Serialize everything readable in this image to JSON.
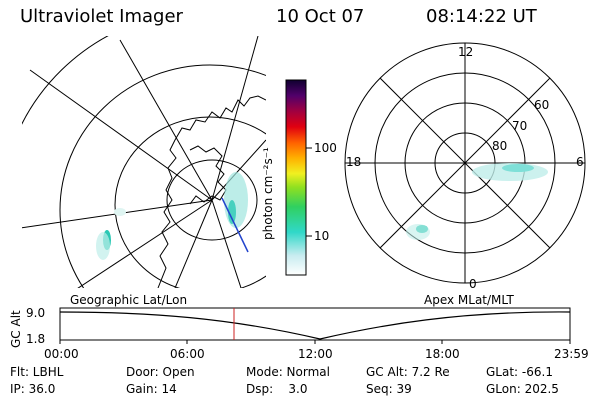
{
  "header": {
    "instrument": "Ultraviolet Imager",
    "date": "10 Oct 07",
    "time": "08:14:22 UT"
  },
  "colorbar": {
    "unit_label": "photon cm⁻²s⁻¹",
    "ticks": [
      "100",
      "10"
    ]
  },
  "polar": {
    "clock_labels": {
      "top": "12",
      "left": "18",
      "right": "6",
      "bottom": "0"
    },
    "lat_labels": [
      "80",
      "70",
      "60"
    ]
  },
  "timeline": {
    "left_title": "Geographic Lat/Lon",
    "right_title": "Apex MLat/MLT",
    "y_axis_label": "GC Alt",
    "y_ticks": [
      "9.0",
      "1.8"
    ],
    "x_ticks": [
      "00:00",
      "06:00",
      "12:00",
      "18:00",
      "23:59"
    ]
  },
  "status": {
    "flt": "Flt: LBHL",
    "ip": "IP: 36.0",
    "door": "Door: Open",
    "gain": "Gain: 14",
    "mode": "Mode: Normal",
    "dsp": "Dsp:    3.0",
    "gc_alt": "GC Alt: 7.2 Re",
    "seq": "Seq: 39",
    "glat": "GLat: -66.1",
    "glon": "GLon: 202.5"
  },
  "colors": {
    "aurora": "#7fe0d8",
    "aurora_core": "#2bc8b4",
    "cursor": "#cc2222",
    "track": "#2244cc"
  }
}
